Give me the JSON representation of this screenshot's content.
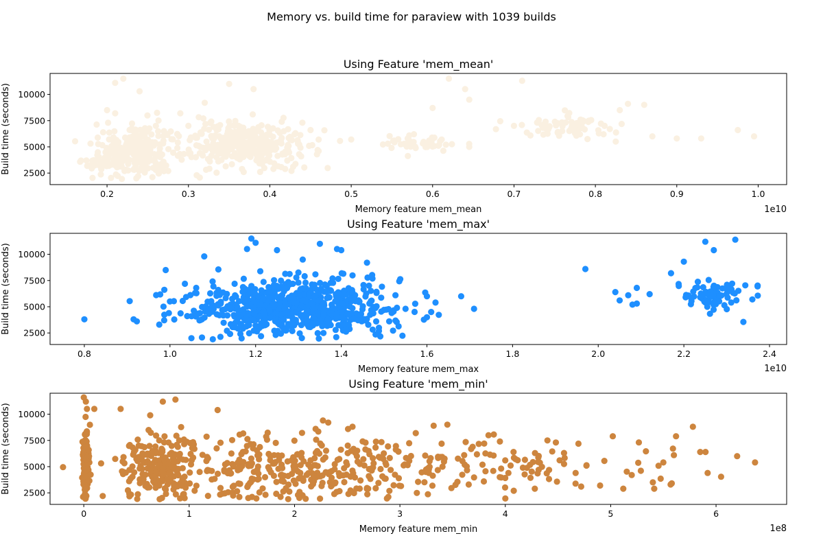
{
  "figure": {
    "suptitle": "Memory vs. build time for paraview with 1039 builds"
  },
  "chart_data": [
    {
      "type": "scatter",
      "title": "Using Feature 'mem_mean'",
      "xlabel": "Memory feature mem_mean",
      "ylabel": "Build time (seconds)",
      "x_offset_label": "1e10",
      "x_scale": 10000000000,
      "xlim": [
        0.13,
        1.035
      ],
      "ylim": [
        1400,
        12000
      ],
      "xticks": [
        0.2,
        0.3,
        0.4,
        0.5,
        0.6,
        0.7,
        0.8,
        0.9,
        1.0
      ],
      "xtick_labels": [
        "0.2",
        "0.3",
        "0.4",
        "0.5",
        "0.6",
        "0.7",
        "0.8",
        "0.9",
        "1.0"
      ],
      "yticks": [
        2500,
        5000,
        7500,
        10000
      ],
      "ytick_labels": [
        "2500",
        "5000",
        "7500",
        "10000"
      ],
      "color": "#faf0e1",
      "clusters": [
        {
          "xc": 0.235,
          "sx": 0.022,
          "yc": 4600,
          "sy": 1200,
          "n": 260
        },
        {
          "xc": 0.2,
          "sx": 0.012,
          "yc": 3400,
          "sy": 400,
          "n": 40
        },
        {
          "xc": 0.37,
          "sx": 0.042,
          "yc": 5200,
          "sy": 1050,
          "n": 340
        },
        {
          "xc": 0.59,
          "sx": 0.025,
          "yc": 5400,
          "sy": 350,
          "n": 45
        },
        {
          "xc": 0.765,
          "sx": 0.028,
          "yc": 7000,
          "sy": 500,
          "n": 70
        }
      ],
      "points": [
        [
          0.22,
          11500
        ],
        [
          0.24,
          10300
        ],
        [
          0.21,
          11100
        ],
        [
          0.35,
          11000
        ],
        [
          0.38,
          10500
        ],
        [
          0.62,
          11500
        ],
        [
          0.71,
          11300
        ],
        [
          0.64,
          10500
        ],
        [
          0.645,
          9500
        ],
        [
          0.6,
          8700
        ],
        [
          0.84,
          9100
        ],
        [
          0.86,
          9000
        ],
        [
          0.83,
          8500
        ],
        [
          0.5,
          5700
        ],
        [
          0.545,
          5300
        ],
        [
          0.645,
          5000
        ],
        [
          0.87,
          6000
        ],
        [
          0.9,
          5800
        ],
        [
          0.93,
          5800
        ],
        [
          0.975,
          6600
        ],
        [
          0.995,
          6000
        ],
        [
          0.825,
          5500
        ],
        [
          0.81,
          6200
        ],
        [
          0.7,
          7000
        ],
        [
          0.73,
          7300
        ],
        [
          0.2,
          8500
        ],
        [
          0.21,
          8200
        ],
        [
          0.3,
          7000
        ],
        [
          0.29,
          8200
        ],
        [
          0.45,
          6600
        ],
        [
          0.46,
          4600
        ],
        [
          0.26,
          7000
        ],
        [
          0.27,
          6500
        ],
        [
          0.32,
          9200
        ],
        [
          0.44,
          7300
        ]
      ]
    },
    {
      "type": "scatter",
      "title": "Using Feature 'mem_max'",
      "xlabel": "Memory feature mem_max",
      "ylabel": "Build time (seconds)",
      "x_offset_label": "1e10",
      "x_scale": 10000000000,
      "xlim": [
        0.72,
        2.44
      ],
      "ylim": [
        1400,
        12000
      ],
      "xticks": [
        0.8,
        1.0,
        1.2,
        1.4,
        1.6,
        1.8,
        2.0,
        2.2,
        2.4
      ],
      "xtick_labels": [
        "0.8",
        "1.0",
        "1.2",
        "1.4",
        "1.6",
        "1.8",
        "2.0",
        "2.2",
        "2.4"
      ],
      "yticks": [
        2500,
        5000,
        7500,
        10000
      ],
      "ytick_labels": [
        "2500",
        "5000",
        "7500",
        "10000"
      ],
      "color": "#1e8fff",
      "clusters": [
        {
          "xc": 1.29,
          "sx": 0.12,
          "yc": 4900,
          "sy": 1300,
          "n": 720
        },
        {
          "xc": 2.27,
          "sx": 0.035,
          "yc": 6200,
          "sy": 750,
          "n": 85
        }
      ],
      "points": [
        [
          0.8,
          3800
        ],
        [
          0.915,
          3800
        ],
        [
          0.975,
          3300
        ],
        [
          0.99,
          8500
        ],
        [
          1.0,
          5500
        ],
        [
          1.08,
          9800
        ],
        [
          1.19,
          11500
        ],
        [
          1.2,
          11100
        ],
        [
          1.18,
          10500
        ],
        [
          1.25,
          10400
        ],
        [
          1.35,
          11000
        ],
        [
          1.39,
          10500
        ],
        [
          1.4,
          10400
        ],
        [
          1.31,
          9500
        ],
        [
          1.46,
          9200
        ],
        [
          1.6,
          6000
        ],
        [
          1.61,
          4500
        ],
        [
          1.62,
          5400
        ],
        [
          1.6,
          4000
        ],
        [
          1.68,
          6000
        ],
        [
          1.71,
          4800
        ],
        [
          1.97,
          8600
        ],
        [
          2.04,
          6400
        ],
        [
          2.05,
          5600
        ],
        [
          2.07,
          6100
        ],
        [
          2.08,
          5200
        ],
        [
          2.09,
          5300
        ],
        [
          2.09,
          6800
        ],
        [
          2.12,
          6200
        ],
        [
          2.17,
          8200
        ],
        [
          2.25,
          11200
        ],
        [
          2.27,
          10400
        ],
        [
          2.32,
          11400
        ],
        [
          2.36,
          5700
        ],
        [
          2.2,
          9300
        ],
        [
          1.55,
          4800
        ],
        [
          1.53,
          4900
        ],
        [
          1.05,
          2000
        ],
        [
          1.1,
          1900
        ]
      ]
    },
    {
      "type": "scatter",
      "title": "Using Feature 'mem_min'",
      "xlabel": "Memory feature mem_min",
      "ylabel": "Build time (seconds)",
      "x_offset_label": "1e8",
      "x_scale": 100000000,
      "xlim": [
        -0.32,
        6.67
      ],
      "ylim": [
        1400,
        12000
      ],
      "xticks": [
        0,
        1,
        2,
        3,
        4,
        5,
        6
      ],
      "xtick_labels": [
        "0",
        "1",
        "2",
        "3",
        "4",
        "5",
        "6"
      ],
      "yticks": [
        2500,
        5000,
        7500,
        10000
      ],
      "ytick_labels": [
        "2500",
        "5000",
        "7500",
        "10000"
      ],
      "color": "#cd853e",
      "clusters": [
        {
          "xc": 0.02,
          "sx": 0.015,
          "yc": 5000,
          "sy": 1800,
          "n": 140
        },
        {
          "xc": 0.7,
          "sx": 0.18,
          "yc": 5000,
          "sy": 1500,
          "n": 160
        },
        {
          "xc": 1.8,
          "sx": 0.7,
          "yc": 4900,
          "sy": 1500,
          "n": 320
        },
        {
          "xc": 3.8,
          "sx": 0.8,
          "yc": 4900,
          "sy": 1300,
          "n": 130
        }
      ],
      "points": [
        [
          0.0,
          11600
        ],
        [
          0.02,
          11200
        ],
        [
          0.03,
          10500
        ],
        [
          0.1,
          10500
        ],
        [
          0.35,
          10500
        ],
        [
          0.75,
          11200
        ],
        [
          0.87,
          11400
        ],
        [
          1.27,
          10400
        ],
        [
          0.63,
          9900
        ],
        [
          2.2,
          8600
        ],
        [
          2.27,
          9400
        ],
        [
          2.32,
          9200
        ],
        [
          2.55,
          8800
        ],
        [
          3.32,
          8900
        ],
        [
          3.45,
          9000
        ],
        [
          5.02,
          7900
        ],
        [
          5.62,
          7900
        ],
        [
          5.78,
          8800
        ],
        [
          5.85,
          6400
        ],
        [
          5.9,
          6400
        ],
        [
          5.92,
          4400
        ],
        [
          6.2,
          6000
        ],
        [
          6.37,
          5400
        ],
        [
          5.6,
          6100
        ],
        [
          5.5,
          5400
        ],
        [
          5.58,
          3400
        ],
        [
          5.4,
          3500
        ],
        [
          5.2,
          4200
        ],
        [
          5.12,
          2900
        ],
        [
          4.9,
          3200
        ],
        [
          4.72,
          3100
        ],
        [
          4.28,
          2900
        ],
        [
          4.08,
          2700
        ],
        [
          4.4,
          7500
        ],
        [
          4.48,
          7300
        ],
        [
          0.18,
          2200
        ],
        [
          0.78,
          2400
        ],
        [
          0.72,
          1900
        ],
        [
          3.8,
          7200
        ],
        [
          3.15,
          8200
        ]
      ]
    }
  ]
}
